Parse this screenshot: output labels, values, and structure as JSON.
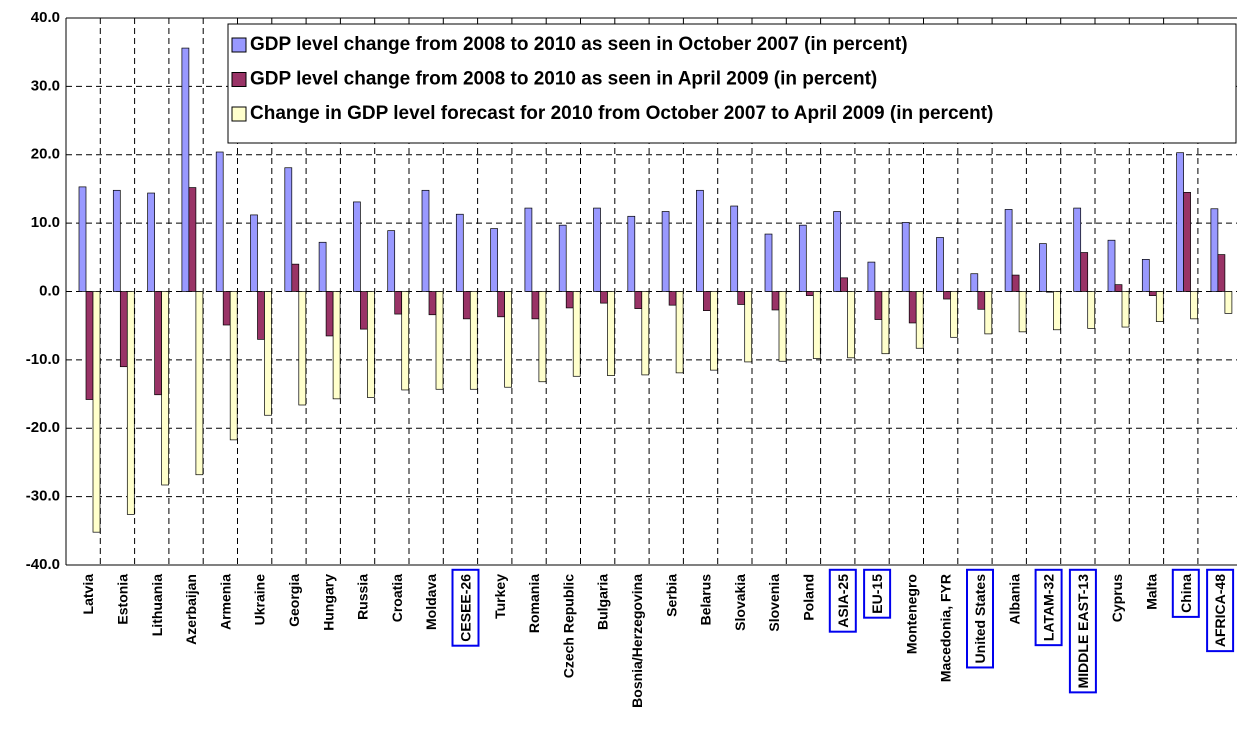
{
  "chart_data": {
    "type": "bar",
    "categories": [
      "Latvia",
      "Estonia",
      "Lithuania",
      "Azerbaijan",
      "Armenia",
      "Ukraine",
      "Georgia",
      "Hungary",
      "Russia",
      "Croatia",
      "Moldava",
      "CESEE-26",
      "Turkey",
      "Romania",
      "Czech Republic",
      "Bulgaria",
      "Bosnia/Herzegovina",
      "Serbia",
      "Belarus",
      "Slovakia",
      "Slovenia",
      "Poland",
      "ASIA-25",
      "EU-15",
      "Montenegro",
      "Macedonia, FYR",
      "United States",
      "Albania",
      "LATAM-32",
      "MIDDLE EAST-13",
      "Cyprus",
      "Malta",
      "China",
      "AFRICA-48"
    ],
    "series": [
      {
        "name": "GDP level change from 2008 to 2010 as seen in October 2007 (in percent)",
        "color": "#9999ff",
        "values": [
          15.3,
          14.8,
          14.4,
          35.6,
          20.4,
          11.2,
          18.1,
          7.2,
          13.1,
          8.9,
          14.8,
          11.3,
          9.2,
          12.2,
          9.7,
          12.2,
          11.0,
          11.7,
          14.8,
          12.5,
          8.4,
          9.7,
          11.7,
          4.3,
          10.1,
          7.9,
          2.6,
          12.0,
          7.0,
          12.2,
          7.5,
          4.7,
          20.3,
          12.1
        ]
      },
      {
        "name": "GDP level change from 2008 to 2010 as seen in April 2009 (in percent)",
        "color": "#993366",
        "values": [
          -15.8,
          -11.0,
          -15.1,
          15.2,
          -4.9,
          -7.0,
          4.0,
          -6.5,
          -5.5,
          -3.3,
          -3.4,
          -4.0,
          -3.7,
          -4.0,
          -2.4,
          -1.7,
          -2.5,
          -2.0,
          -2.8,
          -1.9,
          -2.7,
          -0.6,
          2.0,
          -4.1,
          -4.6,
          -1.1,
          -2.6,
          2.4,
          -0.1,
          5.7,
          1.0,
          -0.6,
          14.5,
          5.4
        ]
      },
      {
        "name": "Change in GDP level forecast for 2010 from October 2007 to April 2009 (in percent)",
        "color": "#ffffcc",
        "values": [
          -35.2,
          -32.6,
          -28.3,
          -26.8,
          -21.7,
          -18.1,
          -16.6,
          -15.7,
          -15.5,
          -14.4,
          -14.3,
          -14.3,
          -14.0,
          -13.2,
          -12.4,
          -12.3,
          -12.2,
          -11.9,
          -11.5,
          -10.3,
          -10.2,
          -9.8,
          -9.7,
          -9.1,
          -8.3,
          -6.7,
          -6.2,
          -5.9,
          -5.6,
          -5.4,
          -5.2,
          -4.4,
          -4.0,
          -3.2
        ]
      }
    ],
    "ylim": [
      -40,
      40
    ],
    "yticks": [
      {
        "value": -40,
        "label": "-40.0"
      },
      {
        "value": -30,
        "label": "-30.0"
      },
      {
        "value": -20,
        "label": "-20.0"
      },
      {
        "value": -10,
        "label": "-10.0"
      },
      {
        "value": 0,
        "label": "0.0"
      },
      {
        "value": 10,
        "label": "10.0"
      },
      {
        "value": 20,
        "label": "20.0"
      },
      {
        "value": 30,
        "label": "30.0"
      },
      {
        "value": 40,
        "label": "40.0"
      }
    ],
    "grid": true,
    "legend": "top-right",
    "boxed_categories": [
      11,
      22,
      23,
      26,
      28,
      29,
      32,
      33
    ]
  }
}
